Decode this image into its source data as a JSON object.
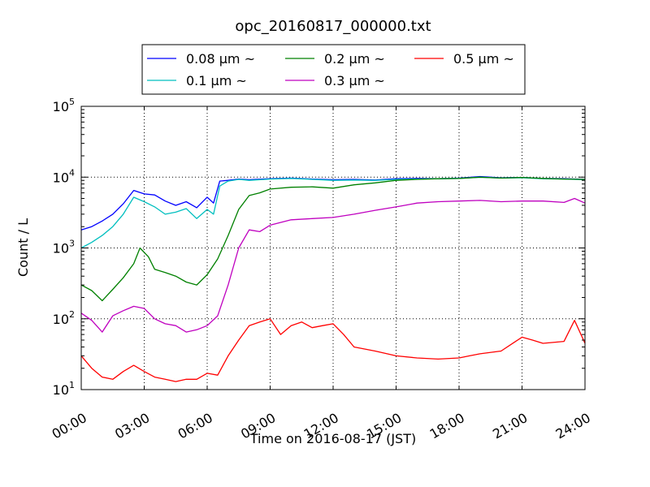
{
  "chart_data": {
    "type": "line",
    "title": "opc_20160817_000000.txt",
    "xlabel": "Time on 2016-08-17 (JST)",
    "ylabel": "Count / L",
    "x_unit": "hours",
    "xlim": [
      0,
      24
    ],
    "ylim": [
      10,
      100000
    ],
    "yscale": "log",
    "grid": true,
    "legend_placement": "top",
    "x_ticks": [
      {
        "value": 0,
        "label": "00:00"
      },
      {
        "value": 3,
        "label": "03:00"
      },
      {
        "value": 6,
        "label": "06:00"
      },
      {
        "value": 9,
        "label": "09:00"
      },
      {
        "value": 12,
        "label": "12:00"
      },
      {
        "value": 15,
        "label": "15:00"
      },
      {
        "value": 18,
        "label": "18:00"
      },
      {
        "value": 21,
        "label": "21:00"
      },
      {
        "value": 24,
        "label": "24:00"
      }
    ],
    "y_ticks": [
      {
        "value": 10,
        "base": "10",
        "exp": "1"
      },
      {
        "value": 100,
        "base": "10",
        "exp": "2"
      },
      {
        "value": 1000,
        "base": "10",
        "exp": "3"
      },
      {
        "value": 10000,
        "base": "10",
        "exp": "4"
      },
      {
        "value": 100000,
        "base": "10",
        "exp": "5"
      }
    ],
    "series": [
      {
        "name": "0.08 μm ~",
        "color": "#0000ff",
        "points": [
          [
            0,
            1800
          ],
          [
            0.5,
            2000
          ],
          [
            1,
            2400
          ],
          [
            1.5,
            3000
          ],
          [
            2,
            4200
          ],
          [
            2.5,
            6500
          ],
          [
            3,
            5800
          ],
          [
            3.5,
            5600
          ],
          [
            4,
            4600
          ],
          [
            4.5,
            4000
          ],
          [
            5,
            4500
          ],
          [
            5.5,
            3700
          ],
          [
            6,
            5200
          ],
          [
            6.3,
            4300
          ],
          [
            6.6,
            8800
          ],
          [
            7,
            9000
          ],
          [
            7.5,
            9400
          ],
          [
            8,
            9200
          ],
          [
            9,
            9500
          ],
          [
            10,
            9700
          ],
          [
            11,
            9400
          ],
          [
            12,
            9200
          ],
          [
            13,
            9300
          ],
          [
            14,
            9100
          ],
          [
            15,
            9500
          ],
          [
            16,
            9600
          ],
          [
            17,
            9500
          ],
          [
            18,
            9700
          ],
          [
            19,
            10200
          ],
          [
            20,
            9800
          ],
          [
            21,
            9900
          ],
          [
            22,
            9600
          ],
          [
            23,
            9500
          ],
          [
            24,
            9300
          ]
        ]
      },
      {
        "name": "0.1 μm ~",
        "color": "#00bfbf",
        "points": [
          [
            0,
            1000
          ],
          [
            0.5,
            1200
          ],
          [
            1,
            1500
          ],
          [
            1.5,
            2000
          ],
          [
            2,
            3000
          ],
          [
            2.5,
            5200
          ],
          [
            3,
            4500
          ],
          [
            3.5,
            3800
          ],
          [
            4,
            3000
          ],
          [
            4.5,
            3200
          ],
          [
            5,
            3600
          ],
          [
            5.5,
            2600
          ],
          [
            6,
            3500
          ],
          [
            6.3,
            3000
          ],
          [
            6.6,
            7500
          ],
          [
            7,
            8800
          ],
          [
            7.5,
            9300
          ],
          [
            8,
            9000
          ],
          [
            9,
            9400
          ],
          [
            10,
            9600
          ],
          [
            11,
            9300
          ],
          [
            12,
            9000
          ],
          [
            13,
            9100
          ],
          [
            14,
            9000
          ],
          [
            15,
            9300
          ],
          [
            16,
            9400
          ],
          [
            17,
            9500
          ],
          [
            18,
            9600
          ],
          [
            19,
            10000
          ],
          [
            20,
            9700
          ],
          [
            21,
            9800
          ],
          [
            22,
            9500
          ],
          [
            23,
            9400
          ],
          [
            24,
            9200
          ]
        ]
      },
      {
        "name": "0.2 μm ~",
        "color": "#008000",
        "points": [
          [
            0,
            300
          ],
          [
            0.5,
            250
          ],
          [
            1,
            180
          ],
          [
            1.5,
            260
          ],
          [
            2,
            380
          ],
          [
            2.5,
            600
          ],
          [
            2.8,
            1000
          ],
          [
            3.2,
            750
          ],
          [
            3.5,
            500
          ],
          [
            4,
            450
          ],
          [
            4.5,
            400
          ],
          [
            5,
            330
          ],
          [
            5.5,
            300
          ],
          [
            6,
            420
          ],
          [
            6.5,
            700
          ],
          [
            7,
            1500
          ],
          [
            7.5,
            3500
          ],
          [
            8,
            5500
          ],
          [
            8.5,
            6000
          ],
          [
            9,
            6800
          ],
          [
            10,
            7200
          ],
          [
            11,
            7300
          ],
          [
            12,
            7000
          ],
          [
            13,
            7800
          ],
          [
            14,
            8300
          ],
          [
            15,
            9000
          ],
          [
            16,
            9300
          ],
          [
            17,
            9500
          ],
          [
            18,
            9600
          ],
          [
            19,
            10000
          ],
          [
            20,
            9700
          ],
          [
            21,
            9900
          ],
          [
            22,
            9600
          ],
          [
            23,
            9400
          ],
          [
            24,
            9300
          ]
        ]
      },
      {
        "name": "0.3 μm ~",
        "color": "#bf00bf",
        "points": [
          [
            0,
            120
          ],
          [
            0.5,
            95
          ],
          [
            1,
            65
          ],
          [
            1.5,
            110
          ],
          [
            2,
            130
          ],
          [
            2.5,
            150
          ],
          [
            3,
            140
          ],
          [
            3.5,
            100
          ],
          [
            4,
            85
          ],
          [
            4.5,
            80
          ],
          [
            5,
            65
          ],
          [
            5.5,
            70
          ],
          [
            6,
            80
          ],
          [
            6.5,
            110
          ],
          [
            7,
            300
          ],
          [
            7.5,
            1000
          ],
          [
            8,
            1800
          ],
          [
            8.5,
            1700
          ],
          [
            9,
            2100
          ],
          [
            10,
            2500
          ],
          [
            11,
            2600
          ],
          [
            12,
            2700
          ],
          [
            13,
            3000
          ],
          [
            14,
            3400
          ],
          [
            15,
            3800
          ],
          [
            16,
            4300
          ],
          [
            17,
            4500
          ],
          [
            18,
            4600
          ],
          [
            19,
            4700
          ],
          [
            20,
            4500
          ],
          [
            21,
            4600
          ],
          [
            22,
            4600
          ],
          [
            23,
            4400
          ],
          [
            23.5,
            5000
          ],
          [
            24,
            4300
          ]
        ]
      },
      {
        "name": "0.5 μm ~",
        "color": "#ff0000",
        "points": [
          [
            0,
            30
          ],
          [
            0.5,
            20
          ],
          [
            1,
            15
          ],
          [
            1.5,
            14
          ],
          [
            2,
            18
          ],
          [
            2.5,
            22
          ],
          [
            3,
            18
          ],
          [
            3.5,
            15
          ],
          [
            4,
            14
          ],
          [
            4.5,
            13
          ],
          [
            5,
            14
          ],
          [
            5.5,
            14
          ],
          [
            6,
            17
          ],
          [
            6.5,
            16
          ],
          [
            7,
            30
          ],
          [
            7.5,
            50
          ],
          [
            8,
            80
          ],
          [
            8.5,
            90
          ],
          [
            9,
            100
          ],
          [
            9.5,
            60
          ],
          [
            10,
            80
          ],
          [
            10.5,
            90
          ],
          [
            11,
            75
          ],
          [
            11.5,
            80
          ],
          [
            12,
            85
          ],
          [
            12.5,
            60
          ],
          [
            13,
            40
          ],
          [
            14,
            35
          ],
          [
            15,
            30
          ],
          [
            16,
            28
          ],
          [
            17,
            27
          ],
          [
            18,
            28
          ],
          [
            18.5,
            30
          ],
          [
            19,
            32
          ],
          [
            20,
            35
          ],
          [
            21,
            55
          ],
          [
            21.5,
            50
          ],
          [
            22,
            45
          ],
          [
            23,
            48
          ],
          [
            23.5,
            95
          ],
          [
            24,
            45
          ]
        ]
      }
    ]
  }
}
